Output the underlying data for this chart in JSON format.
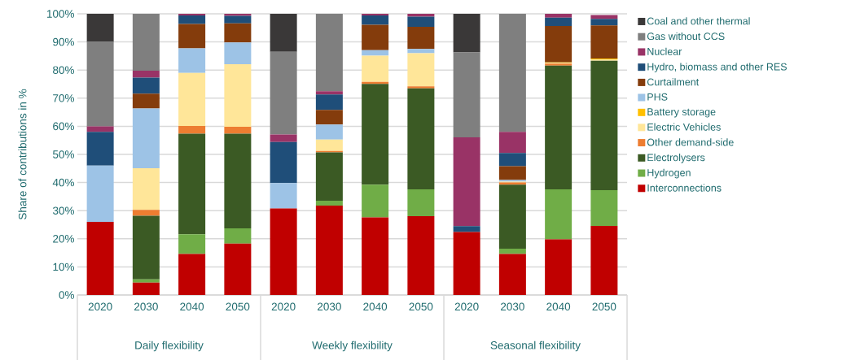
{
  "chart_data": {
    "type": "bar",
    "stacked": true,
    "ylabel": "Share of contributions in %",
    "categories": [
      "2020",
      "2030",
      "2040",
      "2050",
      "2020",
      "2030",
      "2040",
      "2050",
      "2020",
      "2030",
      "2040",
      "2050"
    ],
    "annotations": [
      "Daily flexibility",
      "Weekly flexibility",
      "Seasonal flexibility"
    ],
    "ylim": [
      0,
      100
    ],
    "yticks": [
      {
        "value": 0,
        "label": "0%"
      },
      {
        "value": 10,
        "label": "10%"
      },
      {
        "value": 20,
        "label": "20%"
      },
      {
        "value": 30,
        "label": "30%"
      },
      {
        "value": 40,
        "label": "40%"
      },
      {
        "value": 50,
        "label": "50%"
      },
      {
        "value": 60,
        "label": "60%"
      },
      {
        "value": 70,
        "label": "70%"
      },
      {
        "value": 80,
        "label": "80%"
      },
      {
        "value": 90,
        "label": "90%"
      },
      {
        "value": 100,
        "label": "100%"
      }
    ],
    "grid": "y",
    "legend": "right",
    "series": [
      {
        "name": "Interconnections",
        "color": "#c00000",
        "values": [
          26,
          4.4,
          14.6,
          18.3,
          30.8,
          31.8,
          27.6,
          28.0,
          22.4,
          14.6,
          19.8,
          24.6
        ]
      },
      {
        "name": "Hydrogen",
        "color": "#70ad47",
        "values": [
          0,
          1.2,
          7.0,
          5.4,
          0,
          1.7,
          11.6,
          9.6,
          0,
          1.9,
          17.8,
          12.7
        ]
      },
      {
        "name": "Electrolysers",
        "color": "#3b5a24",
        "values": [
          0,
          22.6,
          35.8,
          33.7,
          0,
          17.2,
          35.9,
          35.9,
          0,
          22.7,
          44.0,
          46.0
        ]
      },
      {
        "name": "Other demand-side",
        "color": "#ed7d31",
        "values": [
          0,
          2.1,
          2.7,
          2.4,
          0,
          0.5,
          0.7,
          0.7,
          0,
          0.8,
          0.7,
          0
        ]
      },
      {
        "name": "Electric Vehicles",
        "color": "#ffe699",
        "values": [
          0,
          14.8,
          18.9,
          22.3,
          0,
          4.1,
          9.3,
          11.8,
          0,
          0.3,
          0.2,
          0.5
        ]
      },
      {
        "name": "Battery storage",
        "color": "#ffc000",
        "values": [
          0,
          0,
          0,
          0,
          0,
          0,
          0,
          0,
          0,
          0,
          0.2,
          0.3
        ]
      },
      {
        "name": "PHS",
        "color": "#9dc3e6",
        "values": [
          20,
          21.2,
          8.7,
          7.7,
          9.0,
          5.3,
          2.0,
          1.5,
          0,
          0.6,
          0,
          0
        ]
      },
      {
        "name": "Curtailment",
        "color": "#843c0c",
        "values": [
          0,
          5.3,
          8.7,
          6.8,
          0,
          5.2,
          9.0,
          7.9,
          0,
          4.9,
          13.0,
          11.8
        ]
      },
      {
        "name": "Hydro, biomass and other RES",
        "color": "#1f4e79",
        "values": [
          12,
          5.7,
          3.0,
          2.7,
          14.6,
          5.5,
          3.3,
          3.6,
          2.1,
          4.7,
          2.9,
          2.3
        ]
      },
      {
        "name": "Nuclear",
        "color": "#993366",
        "values": [
          2,
          2.5,
          0.6,
          0.7,
          2.7,
          1.2,
          0.6,
          1.0,
          31.6,
          7.5,
          1.4,
          1.4
        ]
      },
      {
        "name": "Gas without CCS",
        "color": "#7f7f7f",
        "values": [
          30,
          20.2,
          0,
          0,
          29.4,
          27.5,
          0,
          0,
          30.2,
          42.0,
          0,
          0
        ]
      },
      {
        "name": "Coal and other thermal",
        "color": "#3a3838",
        "values": [
          10,
          0,
          0,
          0,
          13.5,
          0,
          0,
          0,
          13.7,
          0,
          0,
          0
        ]
      }
    ]
  }
}
